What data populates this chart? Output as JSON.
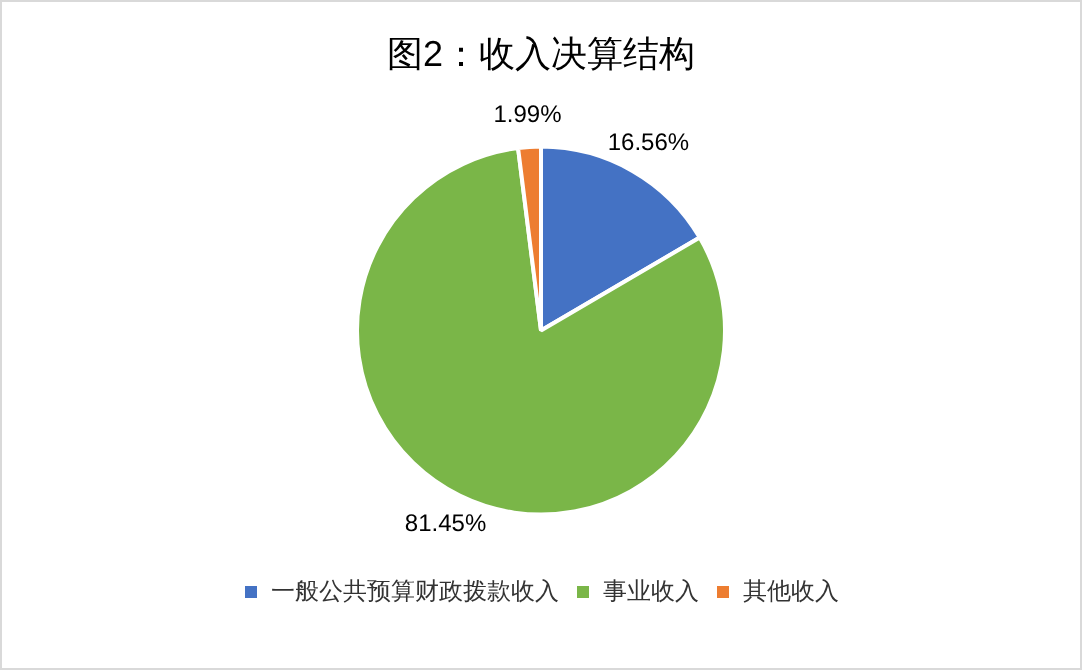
{
  "chart_data": {
    "type": "pie",
    "title": "图2：收入决算结构",
    "categories": [
      "一般公共预算财政拨款收入",
      "事业收入",
      "其他收入"
    ],
    "values": [
      16.56,
      81.45,
      1.99
    ],
    "colors": [
      "#4472c4",
      "#7ab648",
      "#ed7d31"
    ],
    "value_labels": [
      "16.56%",
      "81.45%",
      "1.99%"
    ],
    "legend": "bottom"
  }
}
